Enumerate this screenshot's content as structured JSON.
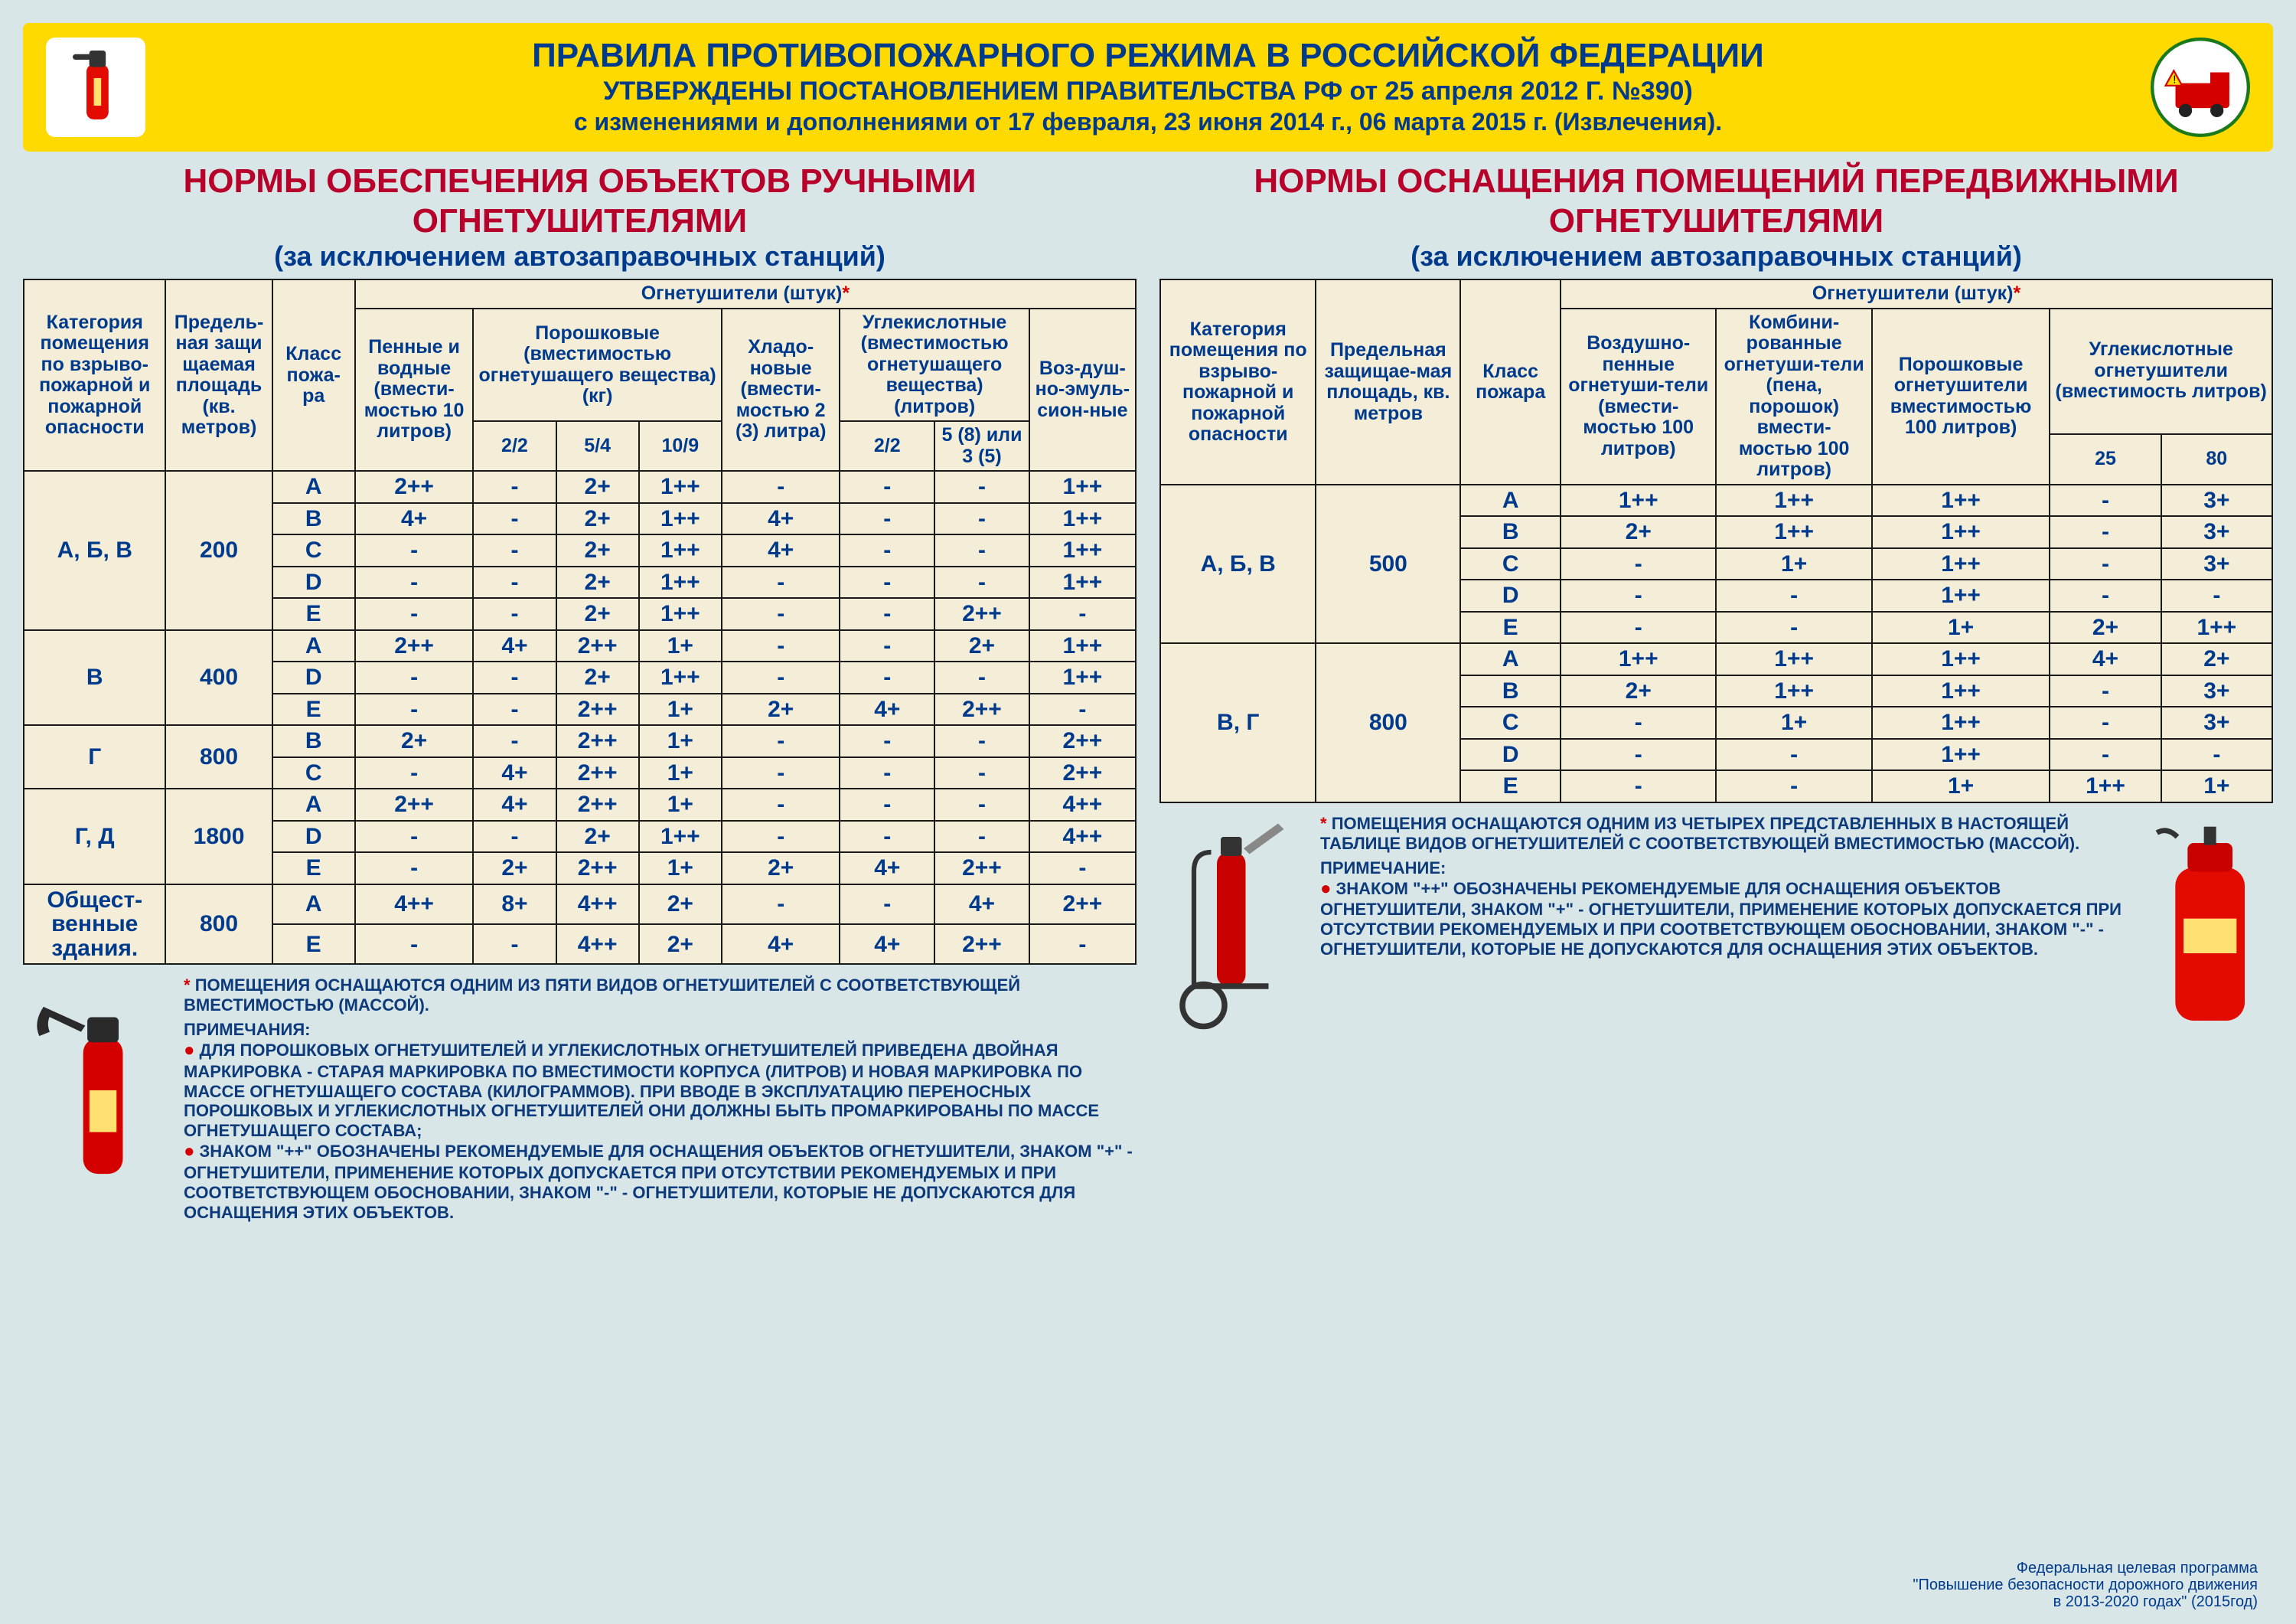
{
  "header": {
    "title": "ПРАВИЛА ПРОТИВОПОЖАРНОГО РЕЖИМА В РОССИЙСКОЙ ФЕДЕРАЦИИ",
    "sub1": "УТВЕРЖДЕНЫ ПОСТАНОВЛЕНИЕМ ПРАВИТЕЛЬСТВА РФ от 25 апреля 2012 Г. №390)",
    "sub2": "с изменениями и дополнениями от 17 февраля, 23 июня 2014 г., 06 марта 2015 г. (Извлечения).",
    "bg_color": "#ffda00",
    "title_color": "#003a8c"
  },
  "left": {
    "title1": "НОРМЫ ОБЕСПЕЧЕНИЯ ОБЪЕКТОВ РУЧНЫМИ",
    "title2": "ОГНЕТУШИТЕЛЯМИ",
    "subtitle": "(за исключением автозаправочных станций)",
    "headers": {
      "cat": "Категория помещения по взрыво-пожарной и пожарной опасности",
      "area": "Предель-ная защи щаемая площадь (кв. метров)",
      "class": "Класс пожа-ра",
      "group": "Огнетушители (штук)",
      "groupstar": "*",
      "foam": "Пенные и водные (вмести-мостью 10 литров)",
      "powder": "Порошковые (вместимостью огнетушащего вещества) (кг)",
      "p1": "2/2",
      "p2": "5/4",
      "p3": "10/9",
      "hladon": "Хладо-новые (вмести-мостью 2 (3) литра)",
      "co2": "Углекислотные (вместимостью огнетушащего вещества) (литров)",
      "c1": "2/2",
      "c2": "5 (8) или 3 (5)",
      "air": "Воз-душ-но-эмуль-сион-ные"
    },
    "groups": [
      {
        "cat": "А, Б, В",
        "area": "200",
        "rows": [
          {
            "cls": "А",
            "v": [
              "2++",
              "-",
              "2+",
              "1++",
              "-",
              "-",
              "-",
              "1++"
            ]
          },
          {
            "cls": "В",
            "v": [
              "4+",
              "-",
              "2+",
              "1++",
              "4+",
              "-",
              "-",
              "1++"
            ]
          },
          {
            "cls": "С",
            "v": [
              "-",
              "-",
              "2+",
              "1++",
              "4+",
              "-",
              "-",
              "1++"
            ]
          },
          {
            "cls": "D",
            "v": [
              "-",
              "-",
              "2+",
              "1++",
              "-",
              "-",
              "-",
              "1++"
            ]
          },
          {
            "cls": "Е",
            "v": [
              "-",
              "-",
              "2+",
              "1++",
              "-",
              "-",
              "2++",
              "-"
            ]
          }
        ]
      },
      {
        "cat": "В",
        "area": "400",
        "rows": [
          {
            "cls": "А",
            "v": [
              "2++",
              "4+",
              "2++",
              "1+",
              "-",
              "-",
              "2+",
              "1++"
            ]
          },
          {
            "cls": "D",
            "v": [
              "-",
              "-",
              "2+",
              "1++",
              "-",
              "-",
              "-",
              "1++"
            ]
          },
          {
            "cls": "Е",
            "v": [
              "-",
              "-",
              "2++",
              "1+",
              "2+",
              "4+",
              "2++",
              "-"
            ]
          }
        ]
      },
      {
        "cat": "Г",
        "area": "800",
        "rows": [
          {
            "cls": "В",
            "v": [
              "2+",
              "-",
              "2++",
              "1+",
              "-",
              "-",
              "-",
              "2++"
            ]
          },
          {
            "cls": "С",
            "v": [
              "-",
              "4+",
              "2++",
              "1+",
              "-",
              "-",
              "-",
              "2++"
            ]
          }
        ]
      },
      {
        "cat": "Г, Д",
        "area": "1800",
        "rows": [
          {
            "cls": "А",
            "v": [
              "2++",
              "4+",
              "2++",
              "1+",
              "-",
              "-",
              "-",
              "4++"
            ]
          },
          {
            "cls": "D",
            "v": [
              "-",
              "-",
              "2+",
              "1++",
              "-",
              "-",
              "-",
              "4++"
            ]
          },
          {
            "cls": "Е",
            "v": [
              "-",
              "2+",
              "2++",
              "1+",
              "2+",
              "4+",
              "2++",
              "-"
            ]
          }
        ]
      },
      {
        "cat": "Общест-венные здания.",
        "area": "800",
        "rows": [
          {
            "cls": "А",
            "v": [
              "4++",
              "8+",
              "4++",
              "2+",
              "-",
              "-",
              "4+",
              "2++"
            ]
          },
          {
            "cls": "Е",
            "v": [
              "-",
              "-",
              "4++",
              "2+",
              "4+",
              "4+",
              "2++",
              "-"
            ]
          }
        ]
      }
    ],
    "notes": {
      "star": "ПОМЕЩЕНИЯ ОСНАЩАЮТСЯ ОДНИМ ИЗ ПЯТИ ВИДОВ ОГНЕТУШИТЕЛЕЙ С СООТВЕТСТВУЮЩЕЙ ВМЕСТИМОСТЬЮ (МАССОЙ).",
      "title": "ПРИМЕЧАНИЯ:",
      "b1": "ДЛЯ ПОРОШКОВЫХ ОГНЕТУШИТЕЛЕЙ И УГЛЕКИСЛОТНЫХ ОГНЕТУШИТЕЛЕЙ ПРИВЕДЕНА ДВОЙНАЯ МАРКИРОВКА - СТАРАЯ МАРКИРОВКА ПО ВМЕСТИМОСТИ КОРПУСА (ЛИТРОВ) И НОВАЯ МАРКИРОВКА ПО МАССЕ ОГНЕТУШАЩЕГО СОСТАВА (КИЛОГРАММОВ). ПРИ ВВОДЕ В ЭКСПЛУАТАЦИЮ ПЕРЕНОСНЫХ ПОРОШКОВЫХ И УГЛЕКИСЛОТНЫХ ОГНЕТУШИТЕЛЕЙ ОНИ ДОЛЖНЫ БЫТЬ ПРОМАРКИРОВАНЫ ПО МАССЕ ОГНЕТУШАЩЕГО СОСТАВА;",
      "b2": "ЗНАКОМ \"++\" ОБОЗНАЧЕНЫ РЕКОМЕНДУЕМЫЕ ДЛЯ ОСНАЩЕНИЯ ОБЪЕКТОВ ОГНЕТУШИТЕЛИ, ЗНАКОМ \"+\" - ОГНЕТУШИТЕЛИ, ПРИМЕНЕНИЕ КОТОРЫХ ДОПУСКАЕТСЯ ПРИ ОТСУТСТВИИ РЕКОМЕНДУЕМЫХ И ПРИ СООТВЕТСТВУЮЩЕМ ОБОСНОВАНИИ, ЗНАКОМ \"-\" - ОГНЕТУШИТЕЛИ, КОТОРЫЕ НЕ ДОПУСКАЮТСЯ ДЛЯ ОСНАЩЕНИЯ ЭТИХ ОБЪЕКТОВ."
    }
  },
  "right": {
    "title1": "НОРМЫ ОСНАЩЕНИЯ ПОМЕЩЕНИЙ ПЕРЕДВИЖНЫМИ",
    "title2": "ОГНЕТУШИТЕЛЯМИ",
    "subtitle": "(за исключением автозаправочных станций)",
    "headers": {
      "cat": "Категория помещения по взрыво-пожарной и пожарной опасности",
      "area": "Предельная защищае-мая площадь, кв. метров",
      "class": "Класс пожара",
      "group": "Огнетушители (штук)",
      "groupstar": "*",
      "air": "Воздушно-пенные огнетуши-тели (вмести-мостью 100 литров)",
      "combo": "Комбини-рованные огнетуши-тели (пена, порошок) вмести-мостью 100 литров)",
      "powder": "Порошковые огнетушители вместимостью 100 литров)",
      "co2": "Углекислотные огнетушители (вместимость литров)",
      "c1": "25",
      "c2": "80"
    },
    "groups": [
      {
        "cat": "А, Б, В",
        "area": "500",
        "rows": [
          {
            "cls": "А",
            "v": [
              "1++",
              "1++",
              "1++",
              "-",
              "3+"
            ]
          },
          {
            "cls": "В",
            "v": [
              "2+",
              "1++",
              "1++",
              "-",
              "3+"
            ]
          },
          {
            "cls": "С",
            "v": [
              "-",
              "1+",
              "1++",
              "-",
              "3+"
            ]
          },
          {
            "cls": "D",
            "v": [
              "-",
              "-",
              "1++",
              "-",
              "-"
            ]
          },
          {
            "cls": "Е",
            "v": [
              "-",
              "-",
              "1+",
              "2+",
              "1++"
            ]
          }
        ]
      },
      {
        "cat": "В, Г",
        "area": "800",
        "rows": [
          {
            "cls": "А",
            "v": [
              "1++",
              "1++",
              "1++",
              "4+",
              "2+"
            ]
          },
          {
            "cls": "В",
            "v": [
              "2+",
              "1++",
              "1++",
              "-",
              "3+"
            ]
          },
          {
            "cls": "С",
            "v": [
              "-",
              "1+",
              "1++",
              "-",
              "3+"
            ]
          },
          {
            "cls": "D",
            "v": [
              "-",
              "-",
              "1++",
              "-",
              "-"
            ]
          },
          {
            "cls": "Е",
            "v": [
              "-",
              "-",
              "1+",
              "1++",
              "1+"
            ]
          }
        ]
      }
    ],
    "notes": {
      "star": "ПОМЕЩЕНИЯ ОСНАЩАЮТСЯ ОДНИМ ИЗ ЧЕТЫРЕХ ПРЕДСТАВЛЕННЫХ В НАСТОЯЩЕЙ ТАБЛИЦЕ ВИДОВ ОГНЕТУШИТЕЛЕЙ С СООТВЕТСТВУЮЩЕЙ ВМЕСТИМОСТЬЮ (МАССОЙ).",
      "title": "ПРИМЕЧАНИЕ:",
      "b1": "ЗНАКОМ \"++\" ОБОЗНАЧЕНЫ РЕКОМЕНДУЕМЫЕ ДЛЯ ОСНАЩЕНИЯ ОБЪЕКТОВ ОГНЕТУШИТЕЛИ, ЗНАКОМ \"+\" - ОГНЕТУШИТЕЛИ, ПРИМЕНЕНИЕ КОТОРЫХ ДОПУСКАЕТСЯ ПРИ ОТСУТСТВИИ РЕКОМЕНДУЕМЫХ И ПРИ СООТВЕТСТВУЮЩЕМ ОБОСНОВАНИИ, ЗНАКОМ \"-\" - ОГНЕТУШИТЕЛИ, КОТОРЫЕ НЕ ДОПУСКАЮТСЯ ДЛЯ ОСНАЩЕНИЯ ЭТИХ ОБЪЕКТОВ."
    }
  },
  "footer": {
    "line1": "Федеральная целевая программа",
    "line2": "\"Повышение безопасности дорожного движения",
    "line3": "в 2013-2020 годах\" (2015год)"
  },
  "colors": {
    "page_bg": "#d8e6e8",
    "table_bg": "#f4eed8",
    "border": "#1a1a1a",
    "text_blue": "#003a8c",
    "title_red": "#b7002a",
    "star_red": "#d40000"
  }
}
